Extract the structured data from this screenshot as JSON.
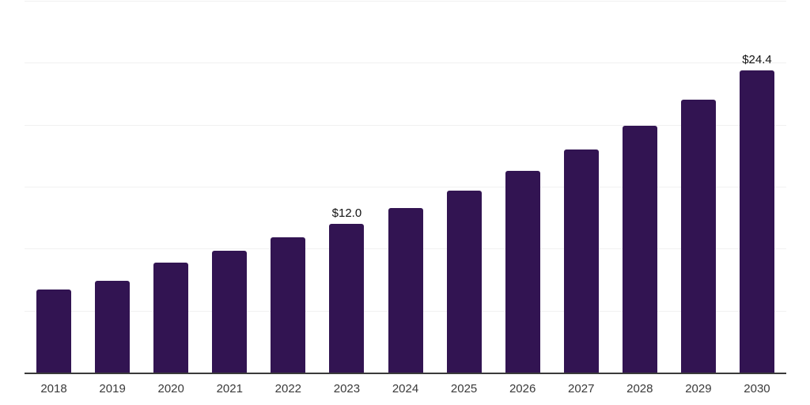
{
  "page": {
    "background": "#ffffff"
  },
  "chart": {
    "bar_color": "#321452",
    "grid_color": "#f1f1f1",
    "axis_color": "#3a3a3a",
    "tick_color": "#3a3a3a",
    "data_label_color": "#121212"
  },
  "chart_data": {
    "type": "bar",
    "title": "",
    "xlabel": "",
    "ylabel": "",
    "categories": [
      "2018",
      "2019",
      "2020",
      "2021",
      "2022",
      "2023",
      "2024",
      "2025",
      "2026",
      "2027",
      "2028",
      "2029",
      "2030"
    ],
    "values": [
      6.7,
      7.4,
      8.9,
      9.8,
      10.9,
      12.0,
      13.3,
      14.7,
      16.3,
      18.0,
      19.9,
      22.0,
      24.4
    ],
    "data_labels": [
      "",
      "",
      "",
      "",
      "",
      "$12.0",
      "",
      "",
      "",
      "",
      "",
      "",
      "$24.4"
    ],
    "ylim": [
      0,
      30
    ],
    "grid_step": 5,
    "grid": "horizontal",
    "legend": "none"
  }
}
